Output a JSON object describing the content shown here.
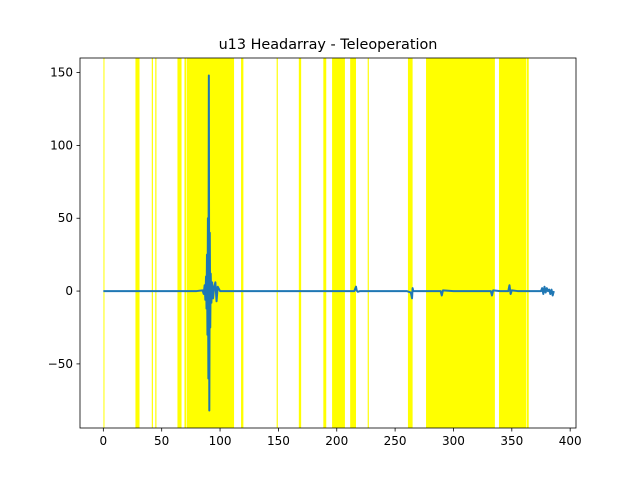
{
  "chart_data": {
    "type": "line",
    "title": "u13 Headarray - Teleoperation",
    "xlabel": "",
    "ylabel": "",
    "xlim": [
      -20,
      405
    ],
    "ylim": [
      -94,
      160
    ],
    "xticks": [
      0,
      50,
      100,
      150,
      200,
      250,
      300,
      350,
      400
    ],
    "yticks": [
      -50,
      0,
      50,
      100,
      150
    ],
    "grid": false,
    "line_color": "#1f77b4",
    "highlight_color": "#ffff00",
    "highlight_spans": [
      [
        0.1,
        0.6
      ],
      [
        27.5,
        31.0
      ],
      [
        41.5,
        42.5
      ],
      [
        44.5,
        45.5
      ],
      [
        63.5,
        67.0
      ],
      [
        69.5,
        71.0
      ],
      [
        71.5,
        112.0
      ],
      [
        118.0,
        120.0
      ],
      [
        148.5,
        149.5
      ],
      [
        167.5,
        169.5
      ],
      [
        188.5,
        191.0
      ],
      [
        196.0,
        207.0
      ],
      [
        211.5,
        216.5
      ],
      [
        226.5,
        227.5
      ],
      [
        261.0,
        265.0
      ],
      [
        276.5,
        335.5
      ],
      [
        339.0,
        362.5
      ],
      [
        363.0,
        364.5
      ]
    ],
    "series": [
      {
        "x": [
          0,
          20,
          40,
          60,
          80,
          85,
          86,
          86.8,
          87.4,
          88.0,
          88.4,
          88.8,
          89.2,
          89.6,
          90.0,
          90.4,
          90.8,
          91.2,
          91.6,
          92.0,
          92.6,
          93.2,
          94.0,
          95.0,
          96.0,
          97.0,
          98.0,
          100,
          110,
          120,
          140,
          160,
          180,
          200,
          215,
          216,
          216.5,
          217,
          218,
          220,
          240,
          260,
          263.5,
          264.5,
          265,
          265.5,
          270,
          280,
          289,
          290,
          291,
          300,
          320,
          332,
          333,
          334,
          340,
          347,
          348,
          349,
          350,
          355,
          360,
          370,
          375,
          376,
          377,
          378,
          379,
          380,
          381,
          382,
          383,
          384,
          385,
          386
        ],
        "y": [
          0,
          0,
          0,
          0,
          0,
          0.5,
          -2,
          4,
          -6,
          10,
          -12,
          25,
          -30,
          50,
          -60,
          148,
          -82,
          40,
          -25,
          12,
          -8,
          6,
          -5,
          3,
          6,
          -7,
          3,
          0,
          0,
          0,
          0,
          0,
          0,
          0,
          0,
          2,
          3,
          0.5,
          -0.5,
          0,
          0,
          0,
          -1,
          -5,
          2,
          0,
          0,
          0,
          0,
          -3,
          0.5,
          0,
          0,
          0,
          -3,
          0.5,
          0,
          0,
          4,
          -2,
          0.5,
          0,
          0,
          0,
          0,
          2,
          -2,
          3,
          -1,
          2,
          0,
          1,
          -2,
          1,
          -3,
          0
        ]
      }
    ]
  }
}
